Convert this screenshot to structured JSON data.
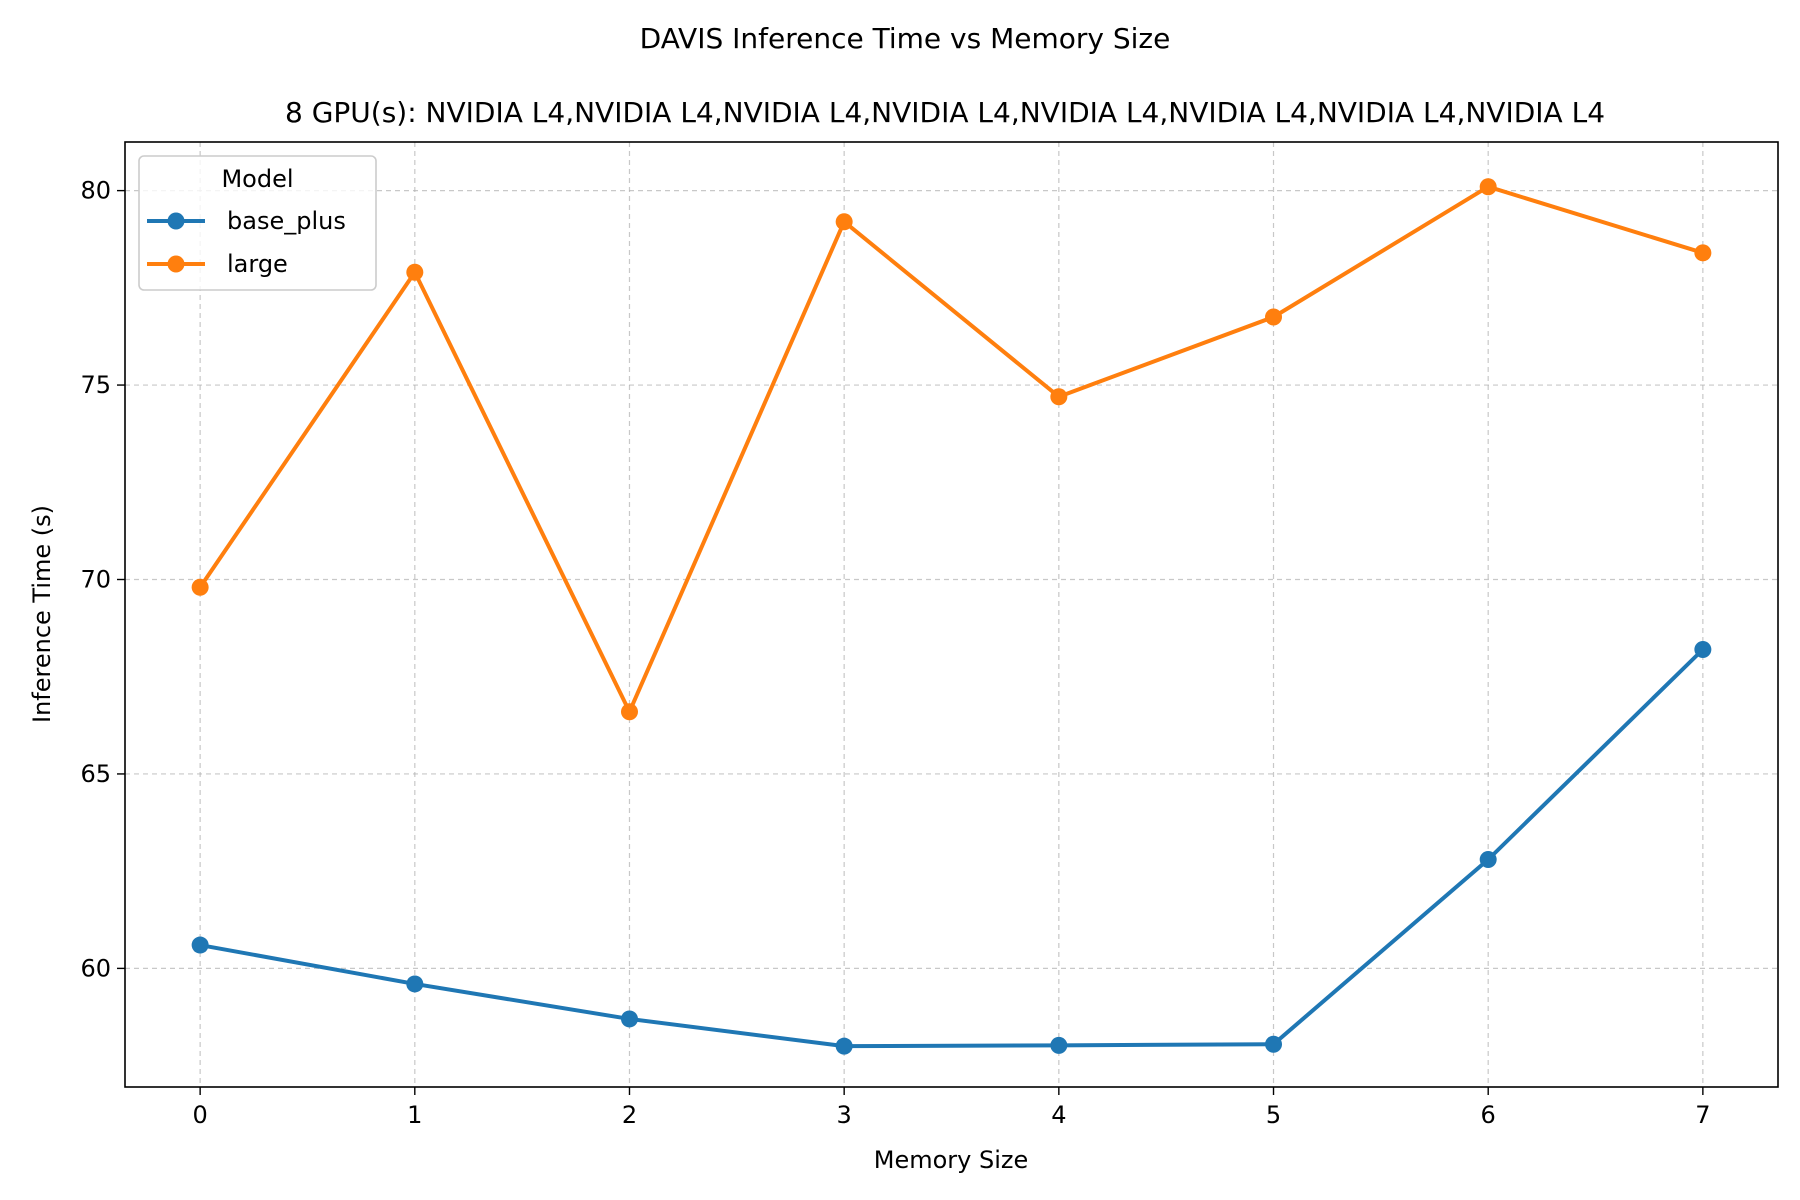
{
  "chart_data": {
    "type": "line",
    "title": "DAVIS Inference Time vs Memory Size",
    "subtitle": "8 GPU(s): NVIDIA L4,NVIDIA L4,NVIDIA L4,NVIDIA L4,NVIDIA L4,NVIDIA L4,NVIDIA L4,NVIDIA L4",
    "xlabel": "Memory Size",
    "ylabel": "Inference Time (s)",
    "x": [
      0,
      1,
      2,
      3,
      4,
      5,
      6,
      7
    ],
    "xlim": [
      -0.35,
      7.35
    ],
    "ylim": [
      56.95,
      81.25
    ],
    "xticks": [
      "0",
      "1",
      "2",
      "3",
      "4",
      "5",
      "6",
      "7"
    ],
    "yticks": [
      60,
      65,
      70,
      75,
      80
    ],
    "ytick_labels": [
      "60",
      "65",
      "70",
      "75",
      "80"
    ],
    "grid": true,
    "legend": {
      "title": "Model",
      "placement": "upper-left"
    },
    "series": [
      {
        "name": "base_plus",
        "color": "#1f77b4",
        "marker": "circle",
        "values": [
          60.6,
          59.6,
          58.7,
          58.0,
          58.02,
          58.05,
          62.8,
          68.2
        ]
      },
      {
        "name": "large",
        "color": "#ff7f0e",
        "marker": "circle",
        "values": [
          69.8,
          77.9,
          66.6,
          79.2,
          74.7,
          76.75,
          80.1,
          78.4
        ]
      }
    ]
  }
}
